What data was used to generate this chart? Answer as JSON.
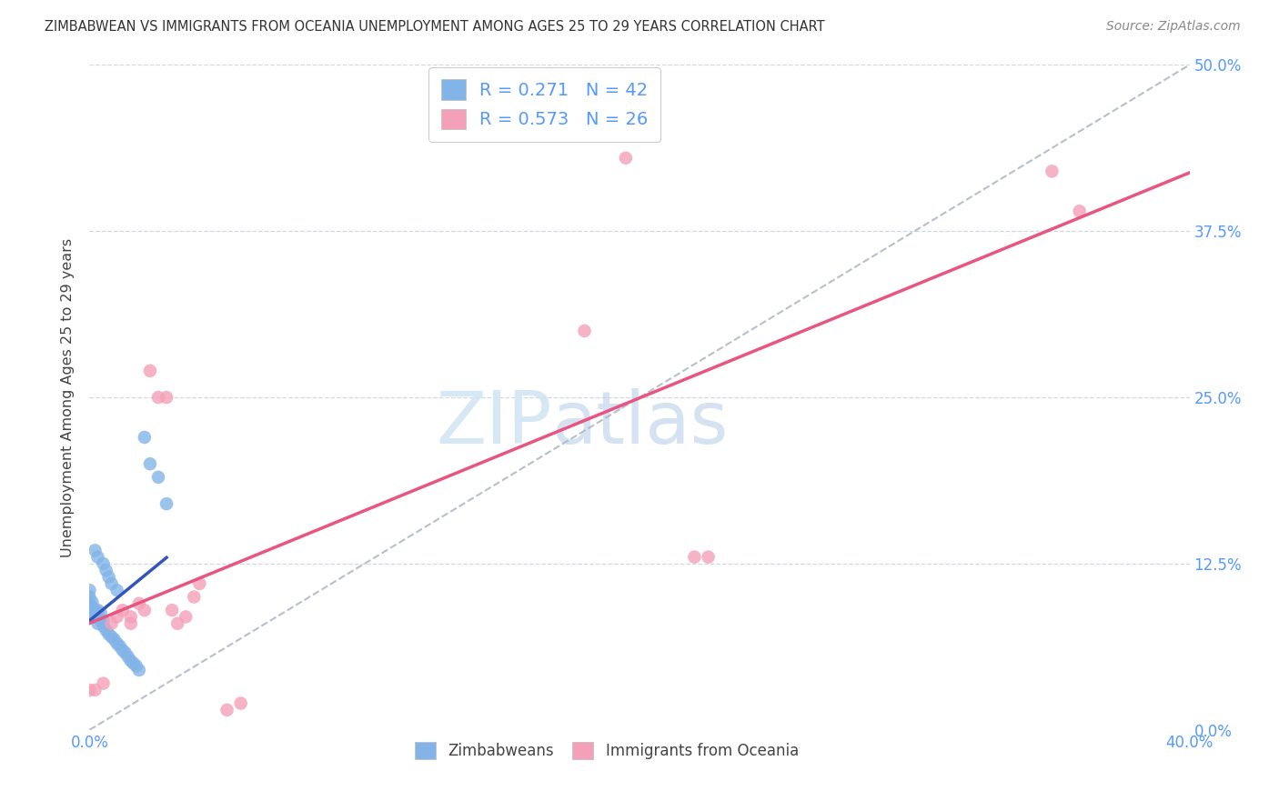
{
  "title": "ZIMBABWEAN VS IMMIGRANTS FROM OCEANIA UNEMPLOYMENT AMONG AGES 25 TO 29 YEARS CORRELATION CHART",
  "source": "Source: ZipAtlas.com",
  "ylabel": "Unemployment Among Ages 25 to 29 years",
  "xlim": [
    0.0,
    0.4
  ],
  "ylim": [
    0.0,
    0.5
  ],
  "background_color": "#ffffff",
  "blue_color": "#82b4e8",
  "pink_color": "#f4a0b8",
  "blue_line_color": "#3355bb",
  "pink_line_color": "#e85580",
  "ref_line_color": "#b0b8c8",
  "grid_color": "#d0d8e0",
  "legend_R_blue": "0.271",
  "legend_N_blue": "42",
  "legend_R_pink": "0.573",
  "legend_N_pink": "26",
  "legend_label_blue": "Zimbabweans",
  "legend_label_pink": "Immigrants from Oceania",
  "tick_color": "#5599ff",
  "watermark_color": "#d0e4f4",
  "blue_points_x": [
    0.0,
    0.0,
    0.0,
    0.0,
    0.0,
    0.0,
    0.001,
    0.001,
    0.001,
    0.002,
    0.002,
    0.002,
    0.003,
    0.003,
    0.003,
    0.003,
    0.004,
    0.004,
    0.005,
    0.005,
    0.005,
    0.006,
    0.006,
    0.007,
    0.007,
    0.008,
    0.008,
    0.009,
    0.01,
    0.01,
    0.011,
    0.012,
    0.013,
    0.014,
    0.015,
    0.016,
    0.017,
    0.018,
    0.02,
    0.022,
    0.025,
    0.028
  ],
  "blue_points_y": [
    0.085,
    0.09,
    0.092,
    0.095,
    0.1,
    0.105,
    0.088,
    0.092,
    0.096,
    0.085,
    0.09,
    0.135,
    0.08,
    0.085,
    0.09,
    0.13,
    0.082,
    0.088,
    0.078,
    0.082,
    0.125,
    0.075,
    0.12,
    0.072,
    0.115,
    0.07,
    0.11,
    0.068,
    0.065,
    0.105,
    0.063,
    0.06,
    0.058,
    0.055,
    0.052,
    0.05,
    0.048,
    0.045,
    0.22,
    0.2,
    0.19,
    0.17
  ],
  "pink_points_x": [
    0.0,
    0.002,
    0.005,
    0.008,
    0.01,
    0.012,
    0.015,
    0.015,
    0.018,
    0.02,
    0.022,
    0.025,
    0.028,
    0.03,
    0.032,
    0.035,
    0.038,
    0.04,
    0.05,
    0.055,
    0.18,
    0.195,
    0.22,
    0.225,
    0.35,
    0.36
  ],
  "pink_points_y": [
    0.03,
    0.03,
    0.035,
    0.08,
    0.085,
    0.09,
    0.08,
    0.085,
    0.095,
    0.09,
    0.27,
    0.25,
    0.25,
    0.09,
    0.08,
    0.085,
    0.1,
    0.11,
    0.015,
    0.02,
    0.3,
    0.43,
    0.13,
    0.13,
    0.42,
    0.39
  ]
}
